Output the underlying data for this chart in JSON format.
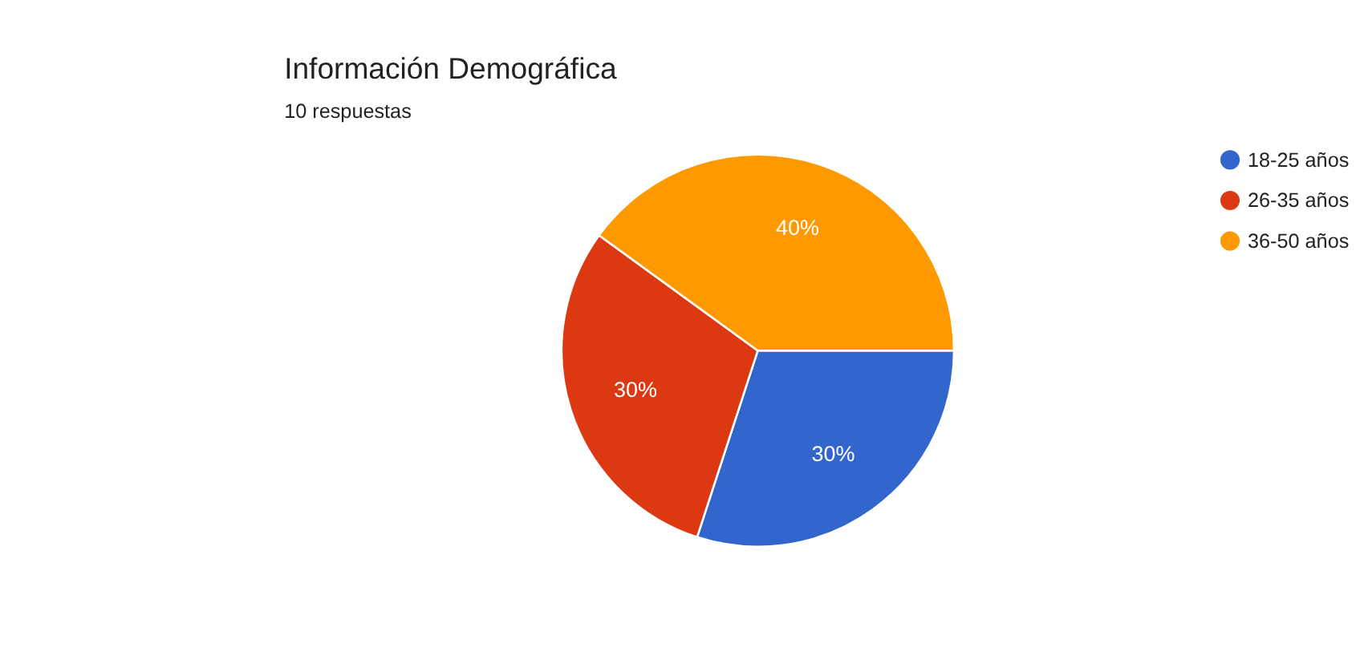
{
  "chart_data": {
    "type": "pie",
    "title": "Información Demográfica",
    "subtitle": "10 respuestas",
    "categories": [
      "18-25 años",
      "26-35 años",
      "36-50 años"
    ],
    "values": [
      30,
      30,
      40
    ],
    "colors": [
      "#3366cc",
      "#dc3912",
      "#ff9900"
    ],
    "value_labels": [
      "30%",
      "30%",
      "40%"
    ],
    "legend": "right"
  }
}
